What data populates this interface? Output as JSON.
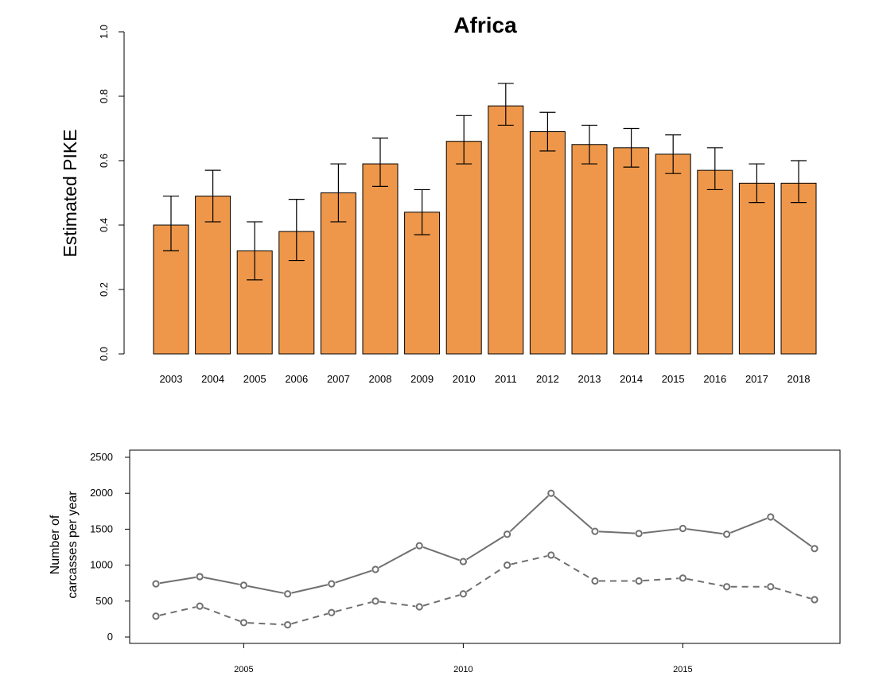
{
  "chart_data": [
    {
      "type": "bar",
      "title": "Africa",
      "ylabel": "Estimated PIKE",
      "xlabel": "",
      "ylim": [
        0,
        1.0
      ],
      "yticks": [
        "0.0",
        "0.2",
        "0.4",
        "0.6",
        "0.8",
        "1.0"
      ],
      "categories": [
        "2003",
        "2004",
        "2005",
        "2006",
        "2007",
        "2008",
        "2009",
        "2010",
        "2011",
        "2012",
        "2013",
        "2014",
        "2015",
        "2016",
        "2017",
        "2018"
      ],
      "values": [
        0.4,
        0.49,
        0.32,
        0.38,
        0.5,
        0.59,
        0.44,
        0.66,
        0.77,
        0.69,
        0.65,
        0.64,
        0.62,
        0.57,
        0.53,
        0.53
      ],
      "lower": [
        0.32,
        0.41,
        0.23,
        0.29,
        0.41,
        0.52,
        0.37,
        0.59,
        0.71,
        0.63,
        0.59,
        0.58,
        0.56,
        0.51,
        0.47,
        0.47
      ],
      "upper": [
        0.49,
        0.57,
        0.41,
        0.48,
        0.59,
        0.67,
        0.51,
        0.74,
        0.84,
        0.75,
        0.71,
        0.7,
        0.68,
        0.64,
        0.59,
        0.6
      ],
      "bar_color": "#ee974a",
      "grid": false
    },
    {
      "type": "line",
      "ylabel": [
        "Number of",
        "carcasses per year"
      ],
      "xlabel": "",
      "ylim": [
        0,
        2500
      ],
      "yticks": [
        "0",
        "500",
        "1000",
        "1500",
        "2000",
        "2500"
      ],
      "xticks": [
        "2005",
        "2010",
        "2015"
      ],
      "x": [
        2003,
        2004,
        2005,
        2006,
        2007,
        2008,
        2009,
        2010,
        2011,
        2012,
        2013,
        2014,
        2015,
        2016,
        2017,
        2018
      ],
      "series": [
        {
          "style": "solid",
          "values": [
            740,
            840,
            720,
            600,
            740,
            940,
            1270,
            1050,
            1430,
            2000,
            1470,
            1440,
            1510,
            1430,
            1670,
            1230
          ]
        },
        {
          "style": "dashed",
          "values": [
            290,
            430,
            200,
            170,
            340,
            500,
            420,
            600,
            1000,
            1140,
            780,
            780,
            820,
            700,
            700,
            520
          ]
        }
      ],
      "line_color": "#707070",
      "grid": false
    }
  ]
}
